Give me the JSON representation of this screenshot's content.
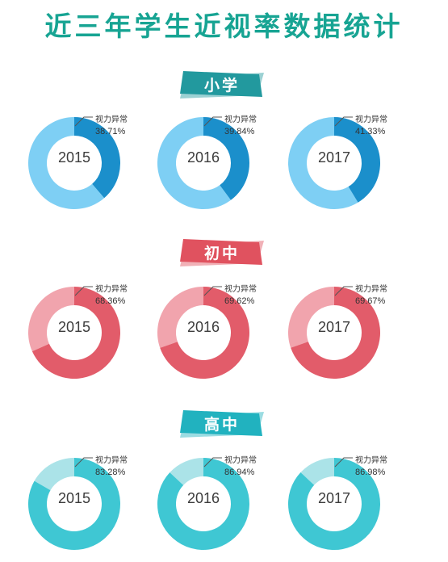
{
  "title": "近三年学生近视率数据统计",
  "chart_data": [
    {
      "type": "pie",
      "title": "小学",
      "label": "视力异常",
      "categories": [
        "2015",
        "2016",
        "2017"
      ],
      "values": [
        38.71,
        39.84,
        41.33
      ],
      "value_labels": [
        "38.71%",
        "39.84%",
        "41.33%"
      ],
      "colors": {
        "banner": "#22999e",
        "main": "#1b8fcb",
        "light": "#7ecff4"
      }
    },
    {
      "type": "pie",
      "title": "初中",
      "label": "视力异常",
      "categories": [
        "2015",
        "2016",
        "2017"
      ],
      "values": [
        68.36,
        69.62,
        69.67
      ],
      "value_labels": [
        "68.36%",
        "69.62%",
        "69.67%"
      ],
      "colors": {
        "banner": "#e0525f",
        "main": "#e25c6a",
        "light": "#f1a4ad"
      }
    },
    {
      "type": "pie",
      "title": "高中",
      "label": "视力异常",
      "categories": [
        "2015",
        "2016",
        "2017"
      ],
      "values": [
        83.28,
        86.94,
        86.98
      ],
      "value_labels": [
        "83.28%",
        "86.94%",
        "86.98%"
      ],
      "colors": {
        "banner": "#21b2bf",
        "main": "#3fc7d3",
        "light": "#abe3e8"
      }
    }
  ]
}
